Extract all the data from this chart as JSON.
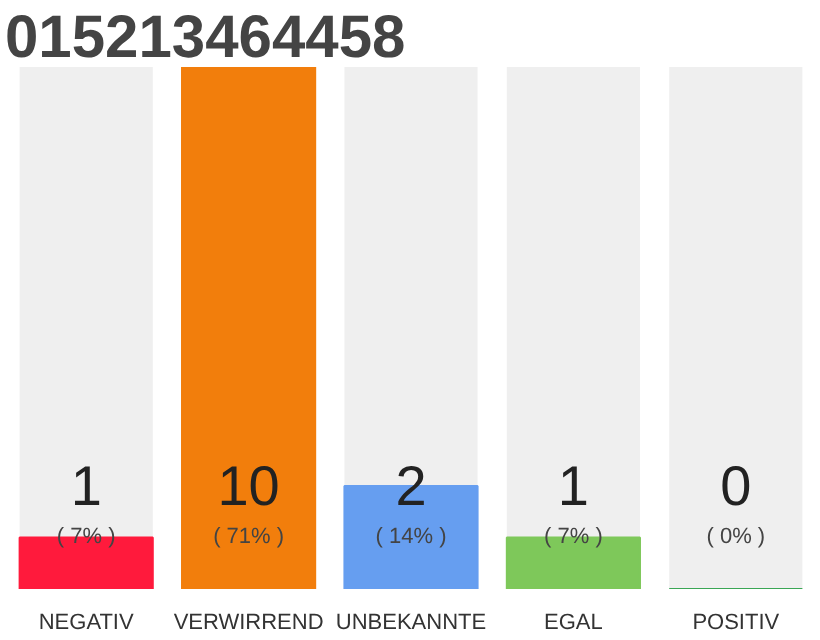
{
  "chart_data": {
    "type": "bar",
    "title": "015213464458",
    "categories": [
      "NEGATIV",
      "VERWIRREND",
      "UNBEKANNTE",
      "EGAL",
      "POSITIV"
    ],
    "values": [
      7,
      71,
      14,
      7,
      0
    ],
    "colors": [
      "#ff1a3c",
      "#f27e0c",
      "#669ef0",
      "#7ec85a",
      "#3aa655"
    ],
    "value_labels": [
      "( 7% )",
      "( 71% )",
      "( 14% )",
      "( 7% )",
      "( 0% )"
    ],
    "annotations": [
      "1",
      "10",
      "2",
      "1",
      "0"
    ],
    "grid": false
  }
}
